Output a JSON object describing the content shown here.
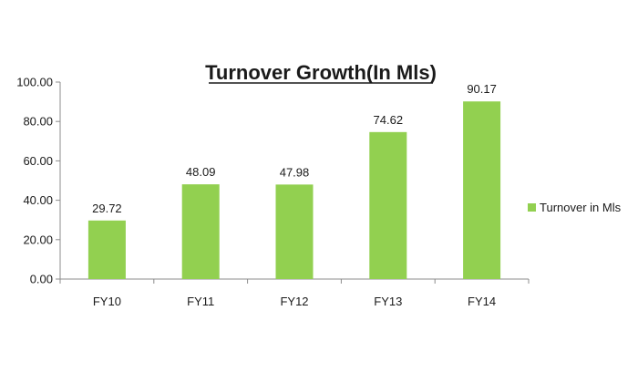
{
  "chart_data": {
    "type": "bar",
    "title": "Turnover Growth(In Mls)",
    "categories": [
      "FY10",
      "FY11",
      "FY12",
      "FY13",
      "FY14"
    ],
    "series": [
      {
        "name": "Turnover in Mls",
        "values": [
          29.72,
          48.09,
          47.98,
          74.62,
          90.17
        ],
        "color": "#92d050"
      }
    ],
    "data_labels": [
      "29.72",
      "48.09",
      "47.98",
      "74.62",
      "90.17"
    ],
    "y_ticks": [
      "0.00",
      "20.00",
      "40.00",
      "60.00",
      "80.00",
      "100.00"
    ],
    "ylim": [
      0,
      100
    ],
    "xlabel": "",
    "ylabel": "",
    "grid": false,
    "legend_position": "right"
  }
}
